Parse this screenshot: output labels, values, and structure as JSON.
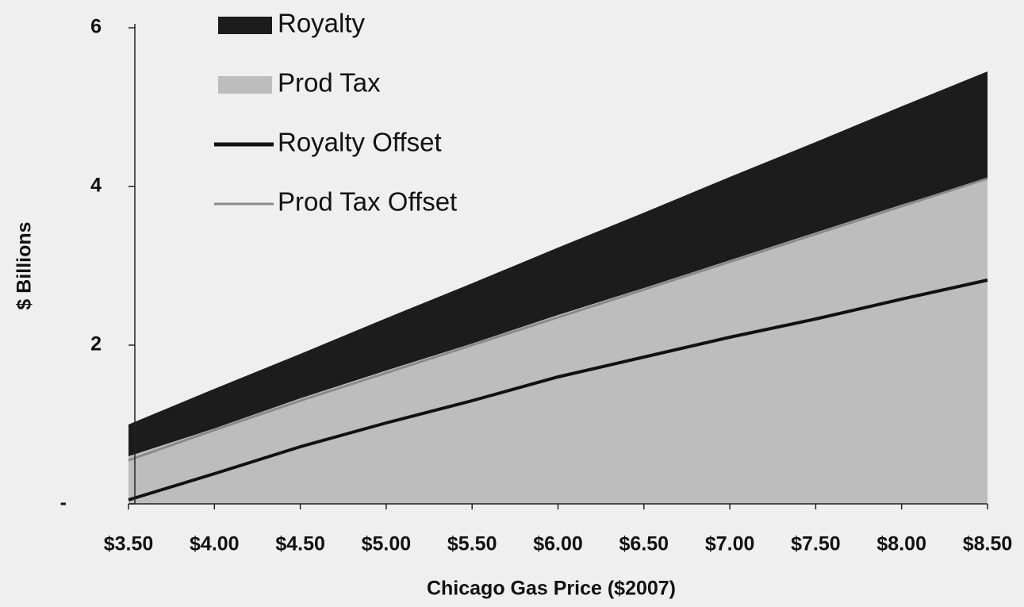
{
  "chart_data": {
    "type": "area",
    "x_label": "Chicago Gas Price ($2007)",
    "y_label": "$ Billions",
    "x": [
      3.5,
      4.0,
      4.5,
      5.0,
      5.5,
      6.0,
      6.5,
      7.0,
      7.5,
      8.0,
      8.5
    ],
    "series": [
      {
        "name": "Royalty",
        "type": "area",
        "color": "#1c1c1c",
        "values": [
          0.4,
          0.5,
          0.56,
          0.66,
          0.76,
          0.85,
          0.95,
          1.05,
          1.14,
          1.24,
          1.35
        ]
      },
      {
        "name": "Prod Tax",
        "type": "area",
        "color": "#bdbdbd",
        "values": [
          0.6,
          0.95,
          1.33,
          1.68,
          2.02,
          2.38,
          2.72,
          3.07,
          3.42,
          3.77,
          4.1
        ]
      },
      {
        "name": "Royalty Offset",
        "type": "line",
        "color": "#111111",
        "values": [
          0.05,
          0.38,
          0.72,
          1.02,
          1.3,
          1.6,
          1.85,
          2.1,
          2.33,
          2.58,
          2.82
        ]
      },
      {
        "name": "Prod Tax Offset",
        "type": "line",
        "color": "#8a8a8a",
        "values": [
          0.55,
          0.93,
          1.3,
          1.65,
          2.0,
          2.35,
          2.7,
          3.05,
          3.4,
          3.75,
          4.1
        ]
      }
    ],
    "stack_order": [
      "Prod Tax",
      "Royalty"
    ],
    "xlim": [
      3.5,
      8.5
    ],
    "xticks": [
      {
        "value": 3.5,
        "label": "$3.50"
      },
      {
        "value": 4.0,
        "label": "$4.00"
      },
      {
        "value": 4.5,
        "label": "$4.50"
      },
      {
        "value": 5.0,
        "label": "$5.00"
      },
      {
        "value": 5.5,
        "label": "$5.50"
      },
      {
        "value": 6.0,
        "label": "$6.00"
      },
      {
        "value": 6.5,
        "label": "$6.50"
      },
      {
        "value": 7.0,
        "label": "$7.00"
      },
      {
        "value": 7.5,
        "label": "$7.50"
      },
      {
        "value": 8.0,
        "label": "$8.00"
      },
      {
        "value": 8.5,
        "label": "$8.50"
      }
    ],
    "ylim": [
      0,
      6
    ],
    "yticks": [
      {
        "value": 0,
        "label": "-"
      },
      2,
      4,
      6
    ],
    "legend": "upper left",
    "grid": false
  }
}
